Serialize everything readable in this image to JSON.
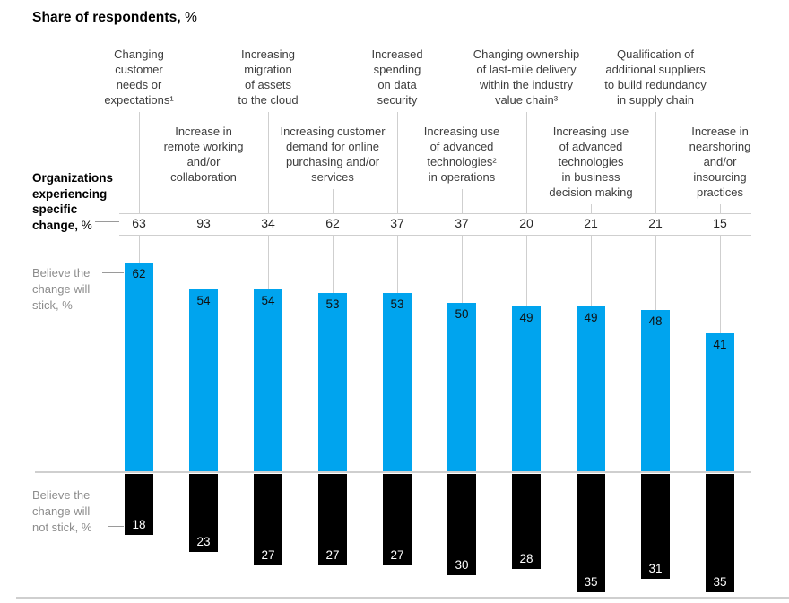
{
  "title": {
    "text": "Share of respondents,",
    "unit": " %"
  },
  "side_labels": {
    "organizations": {
      "lines": [
        "Organizations",
        "experiencing",
        "specific",
        "change,"
      ],
      "unit": "%"
    },
    "stick": {
      "lines": [
        "Believe the",
        "change will",
        "stick, %"
      ]
    },
    "not_stick": {
      "lines": [
        "Believe the",
        "change will",
        "not stick, %"
      ]
    }
  },
  "colors": {
    "blue": "#00A4EE",
    "black": "#000000",
    "grid": "#cfcfcf"
  },
  "chart_data": {
    "type": "bar",
    "title": "Share of respondents, %",
    "legend_position": "left",
    "grid": "off",
    "ylim": [
      0,
      100
    ],
    "categories": [
      {
        "lines": [
          "Changing",
          "customer",
          "needs or",
          "expectations¹"
        ],
        "row": "top"
      },
      {
        "lines": [
          "Increase in",
          "remote working",
          "and/or",
          "collaboration"
        ],
        "row": "bottom"
      },
      {
        "lines": [
          "Increasing",
          "migration",
          "of assets",
          "to the cloud"
        ],
        "row": "top"
      },
      {
        "lines": [
          "Increasing customer",
          "demand for online",
          "purchasing and/or",
          "services"
        ],
        "row": "bottom"
      },
      {
        "lines": [
          "Increased",
          "spending",
          "on data",
          "security"
        ],
        "row": "top"
      },
      {
        "lines": [
          "Increasing use",
          "of advanced",
          "technologies²",
          "in operations"
        ],
        "row": "bottom"
      },
      {
        "lines": [
          "Changing ownership",
          "of last-mile delivery",
          "within the industry",
          "value chain³"
        ],
        "row": "top"
      },
      {
        "lines": [
          "Increasing use",
          "of advanced",
          "technologies",
          "in business",
          "decision making"
        ],
        "row": "bottom"
      },
      {
        "lines": [
          "Qualification of",
          "additional suppliers",
          "to build redundancy",
          "in supply chain"
        ],
        "row": "top"
      },
      {
        "lines": [
          "Increase in",
          "nearshoring",
          "and/or",
          "insourcing",
          "practices"
        ],
        "row": "bottom"
      }
    ],
    "series": [
      {
        "name": "Organizations experiencing specific change, %",
        "values": [
          63,
          93,
          34,
          62,
          37,
          37,
          20,
          21,
          21,
          15
        ]
      },
      {
        "name": "Believe the change will stick, %",
        "values": [
          62,
          54,
          54,
          53,
          53,
          50,
          49,
          49,
          48,
          41
        ]
      },
      {
        "name": "Believe the change will not stick, %",
        "values": [
          18,
          23,
          27,
          27,
          27,
          30,
          28,
          35,
          31,
          35
        ]
      }
    ]
  }
}
